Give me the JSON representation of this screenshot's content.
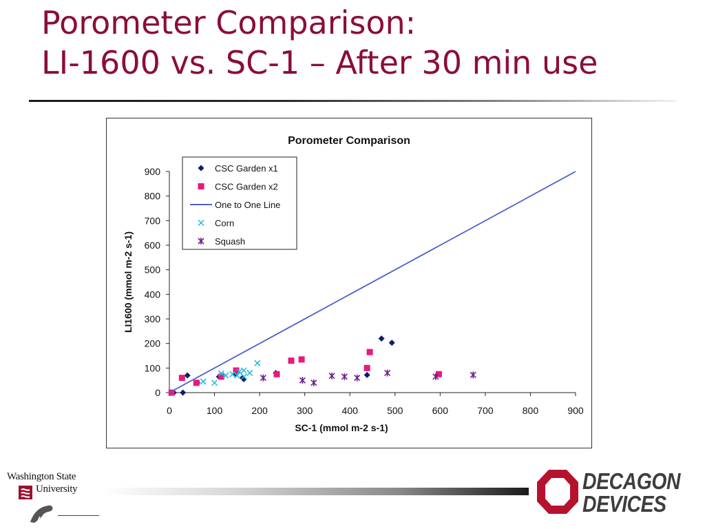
{
  "slide": {
    "title_line1": "Porometer Comparison:",
    "title_line2": "LI-1600 vs. SC-1 – After 30 min use",
    "title_color": "#8b0d3a"
  },
  "footer": {
    "wsu_line1": "Washington State",
    "wsu_line2": "University",
    "decagon_line1": "DECAGON",
    "decagon_line2": "DEVICES",
    "decagon_color": "#b5122e"
  },
  "chart_data": {
    "type": "scatter",
    "title": "Porometer Comparison",
    "xlabel": "SC-1 (mmol m-2 s-1)",
    "ylabel": "LI1600 (mmol m-2 s-1)",
    "xlim": [
      0,
      900
    ],
    "ylim": [
      0,
      900
    ],
    "xticks": [
      "0",
      "100",
      "200",
      "300",
      "400",
      "500",
      "600",
      "700",
      "800",
      "900"
    ],
    "yticks": [
      "0",
      "100",
      "200",
      "300",
      "400",
      "500",
      "600",
      "700",
      "800",
      "900"
    ],
    "grid": false,
    "legend_position": "top-left",
    "series": [
      {
        "name": "CSC Garden x1",
        "marker": "diamond",
        "color": "#0b1d6e",
        "points": [
          [
            10,
            0
          ],
          [
            30,
            0
          ],
          [
            40,
            70
          ],
          [
            62,
            40
          ],
          [
            110,
            65
          ],
          [
            145,
            75
          ],
          [
            162,
            60
          ],
          [
            165,
            55
          ],
          [
            236,
            80
          ],
          [
            438,
            72
          ],
          [
            470,
            220
          ],
          [
            493,
            203
          ]
        ]
      },
      {
        "name": "CSC Garden x2",
        "marker": "square",
        "color": "#e8197a",
        "points": [
          [
            5,
            0
          ],
          [
            28,
            60
          ],
          [
            60,
            40
          ],
          [
            115,
            65
          ],
          [
            148,
            90
          ],
          [
            238,
            75
          ],
          [
            270,
            130
          ],
          [
            293,
            135
          ],
          [
            438,
            100
          ],
          [
            444,
            165
          ],
          [
            597,
            75
          ]
        ]
      },
      {
        "name": "One to One Line",
        "marker": "line",
        "color": "#4a5fd0",
        "points": [
          [
            0,
            0
          ],
          [
            900,
            900
          ]
        ]
      },
      {
        "name": "Corn",
        "marker": "x",
        "color": "#1fb7e0",
        "points": [
          [
            75,
            45
          ],
          [
            100,
            40
          ],
          [
            115,
            78
          ],
          [
            125,
            70
          ],
          [
            140,
            75
          ],
          [
            150,
            70
          ],
          [
            155,
            85
          ],
          [
            165,
            90
          ],
          [
            178,
            80
          ],
          [
            195,
            120
          ],
          [
            165,
            65
          ]
        ]
      },
      {
        "name": "Squash",
        "marker": "star",
        "color": "#6a1f8c",
        "points": [
          [
            208,
            60
          ],
          [
            295,
            50
          ],
          [
            320,
            40
          ],
          [
            360,
            68
          ],
          [
            388,
            65
          ],
          [
            416,
            60
          ],
          [
            483,
            80
          ],
          [
            590,
            65
          ],
          [
            673,
            72
          ]
        ]
      }
    ]
  }
}
